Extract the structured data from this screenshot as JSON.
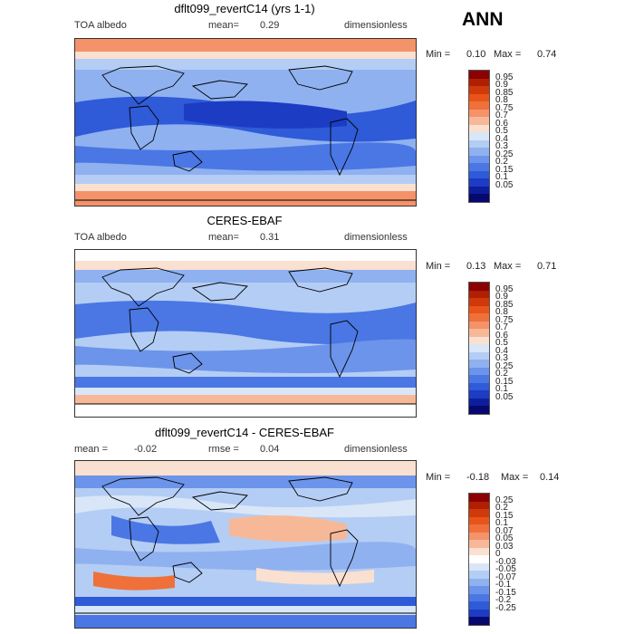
{
  "season": "ANN",
  "panels": [
    {
      "title": "dflt099_revertC14 (yrs 1-1)",
      "left_label": "TOA albedo",
      "center_label": "mean=",
      "center_value": "0.29",
      "right_label": "dimensionless",
      "min_label": "Min =",
      "min_value": "0.10",
      "max_label": "Max =",
      "max_value": "0.74",
      "ticks": [
        "0.95",
        "0.9",
        "0.85",
        "0.8",
        "0.75",
        "0.7",
        "0.6",
        "0.5",
        "0.4",
        "0.3",
        "0.25",
        "0.2",
        "0.15",
        "0.1",
        "0.05"
      ]
    },
    {
      "title": "CERES-EBAF",
      "left_label": "TOA albedo",
      "center_label": "mean=",
      "center_value": "0.31",
      "right_label": "dimensionless",
      "min_label": "Min =",
      "min_value": "0.13",
      "max_label": "Max =",
      "max_value": "0.71",
      "ticks": [
        "0.95",
        "0.9",
        "0.85",
        "0.8",
        "0.75",
        "0.7",
        "0.6",
        "0.5",
        "0.4",
        "0.3",
        "0.25",
        "0.2",
        "0.15",
        "0.1",
        "0.05"
      ]
    },
    {
      "title": "dflt099_revertC14 - CERES-EBAF",
      "left_label": "mean =",
      "left_value": "-0.02",
      "center_label": "rmse =",
      "center_value": "0.04",
      "right_label": "dimensionless",
      "min_label": "Min =",
      "min_value": "-0.18",
      "max_label": "Max =",
      "max_value": "0.14",
      "ticks": [
        "0.25",
        "0.2",
        "0.15",
        "0.1",
        "0.07",
        "0.05",
        "0.03",
        "0",
        "-0.03",
        "-0.05",
        "-0.07",
        "-0.1",
        "-0.15",
        "-0.2",
        "-0.25"
      ]
    }
  ],
  "colors": {
    "scale_seq": [
      "#8b0000",
      "#b01f00",
      "#d03a0a",
      "#e8541a",
      "#f0703a",
      "#f4926a",
      "#f7b898",
      "#fae0d0",
      "#d8e6f8",
      "#b4cdf4",
      "#8fb1f0",
      "#6c94ea",
      "#4a77e4",
      "#2f5ad8",
      "#1c3cc4",
      "#0d1e9c",
      "#06086e"
    ],
    "scale_diff": [
      "#8b0000",
      "#b01f00",
      "#d03a0a",
      "#e8541a",
      "#f0703a",
      "#f4926a",
      "#f7b898",
      "#fae0d0",
      "#ffffff",
      "#d8e6f8",
      "#b4cdf4",
      "#8fb1f0",
      "#6c94ea",
      "#4a77e4",
      "#2f5ad8",
      "#1c3cc4",
      "#06086e"
    ]
  }
}
